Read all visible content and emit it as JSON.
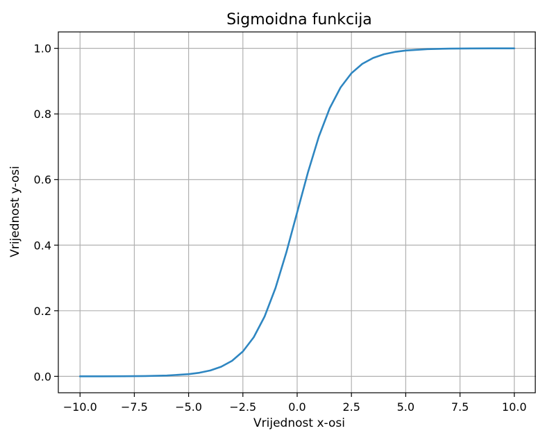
{
  "chart_data": {
    "type": "line",
    "title": "Sigmoidna funkcija",
    "xlabel": "Vrijednost x-osi",
    "ylabel": "Vrijednost y-osi",
    "xlim": [
      -11,
      11
    ],
    "ylim": [
      -0.05,
      1.05
    ],
    "grid": true,
    "line_color": "#2e86c1",
    "x_ticks": [
      "−10.0",
      "−7.5",
      "−5.0",
      "−2.5",
      "0.0",
      "2.5",
      "5.0",
      "7.5",
      "10.0"
    ],
    "x_tick_values": [
      -10,
      -7.5,
      -5,
      -2.5,
      0,
      2.5,
      5,
      7.5,
      10
    ],
    "y_ticks": [
      "0.0",
      "0.2",
      "0.4",
      "0.6",
      "0.8",
      "1.0"
    ],
    "y_tick_values": [
      0,
      0.2,
      0.4,
      0.6,
      0.8,
      1.0
    ],
    "series": [
      {
        "x": [
          -10,
          -9,
          -8,
          -7,
          -6,
          -5,
          -4.5,
          -4,
          -3.5,
          -3,
          -2.5,
          -2,
          -1.5,
          -1,
          -0.5,
          0,
          0.5,
          1,
          1.5,
          2,
          2.5,
          3,
          3.5,
          4,
          4.5,
          5,
          6,
          7,
          8,
          9,
          10
        ],
        "y": [
          0.0,
          0.0001,
          0.0003,
          0.0009,
          0.0025,
          0.0067,
          0.011,
          0.018,
          0.0293,
          0.0474,
          0.0759,
          0.1192,
          0.1824,
          0.2689,
          0.3775,
          0.5,
          0.6225,
          0.7311,
          0.8176,
          0.8808,
          0.9241,
          0.9526,
          0.9707,
          0.982,
          0.989,
          0.9933,
          0.9975,
          0.9991,
          0.9997,
          0.9999,
          1.0
        ]
      }
    ]
  }
}
